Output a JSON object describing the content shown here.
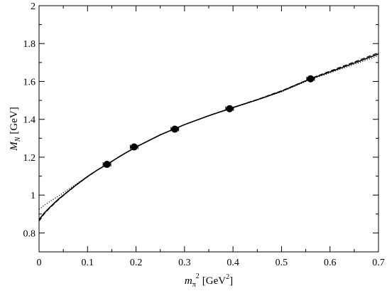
{
  "chart_data": {
    "type": "scatter",
    "title": "",
    "xlabel": {
      "main": "m",
      "sub": "π",
      "sup": "2",
      "unit_main": "[GeV",
      "unit_sup": "2",
      "unit_close": "]"
    },
    "ylabel": {
      "main": "M",
      "sub": "N",
      "unit": "[GeV]"
    },
    "xlim": [
      0,
      0.7
    ],
    "ylim": [
      0.7,
      2.0
    ],
    "xticks": [
      0,
      0.1,
      0.2,
      0.3,
      0.4,
      0.5,
      0.6,
      0.7
    ],
    "xtick_labels": [
      "0",
      "0.1",
      "0.2",
      "0.3",
      "0.4",
      "0.5",
      "0.6",
      "0.7"
    ],
    "yticks": [
      0.8,
      1.0,
      1.2,
      1.4,
      1.6,
      1.8,
      2.0
    ],
    "ytick_labels": [
      "0.8",
      "1",
      "1.2",
      "1.4",
      "1.6",
      "1.8",
      "2"
    ],
    "grid": false,
    "points": [
      {
        "x": 0.14,
        "y": 1.162,
        "xerr": 0.008
      },
      {
        "x": 0.196,
        "y": 1.254,
        "xerr": 0.008
      },
      {
        "x": 0.28,
        "y": 1.348,
        "xerr": 0.008
      },
      {
        "x": 0.393,
        "y": 1.456,
        "xerr": 0.008
      },
      {
        "x": 0.56,
        "y": 1.614,
        "xerr": 0.008
      }
    ],
    "curves": [
      {
        "style": "solid",
        "x": [
          0,
          0.01,
          0.02,
          0.04,
          0.06,
          0.08,
          0.1,
          0.12,
          0.14,
          0.17,
          0.2,
          0.25,
          0.3,
          0.35,
          0.4,
          0.45,
          0.5,
          0.56,
          0.6,
          0.65,
          0.7
        ],
        "y": [
          0.87,
          0.903,
          0.93,
          0.978,
          1.02,
          1.06,
          1.098,
          1.132,
          1.162,
          1.21,
          1.254,
          1.318,
          1.372,
          1.419,
          1.462,
          1.503,
          1.548,
          1.614,
          1.65,
          1.697,
          1.745
        ]
      },
      {
        "style": "dashed",
        "x": [
          0,
          0.01,
          0.02,
          0.04,
          0.06,
          0.08,
          0.1,
          0.12,
          0.14,
          0.17,
          0.2,
          0.25,
          0.3,
          0.35,
          0.4,
          0.45,
          0.5,
          0.56,
          0.6,
          0.65,
          0.7
        ],
        "y": [
          0.862,
          0.898,
          0.926,
          0.975,
          1.018,
          1.058,
          1.096,
          1.131,
          1.162,
          1.21,
          1.254,
          1.318,
          1.372,
          1.42,
          1.463,
          1.505,
          1.551,
          1.616,
          1.655,
          1.703,
          1.752
        ]
      },
      {
        "style": "dotted",
        "x": [
          0,
          0.01,
          0.02,
          0.04,
          0.06,
          0.08,
          0.1,
          0.12,
          0.14,
          0.17,
          0.2,
          0.25,
          0.3,
          0.35,
          0.4,
          0.45,
          0.5,
          0.56,
          0.6,
          0.65,
          0.7
        ],
        "y": [
          0.925,
          0.944,
          0.962,
          0.995,
          1.03,
          1.064,
          1.098,
          1.131,
          1.162,
          1.208,
          1.252,
          1.317,
          1.371,
          1.418,
          1.461,
          1.502,
          1.545,
          1.61,
          1.645,
          1.69,
          1.736
        ]
      }
    ]
  }
}
